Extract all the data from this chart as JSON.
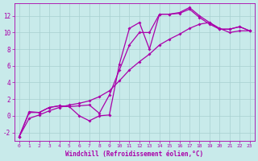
{
  "xlabel": "Windchill (Refroidissement éolien,°C)",
  "background_color": "#c8eaea",
  "grid_color": "#a8d0d0",
  "line_color": "#aa00aa",
  "xlim": [
    -0.5,
    23.5
  ],
  "ylim": [
    -3.0,
    13.5
  ],
  "yticks": [
    -2,
    0,
    2,
    4,
    6,
    8,
    10,
    12
  ],
  "xticks": [
    0,
    1,
    2,
    3,
    4,
    5,
    6,
    7,
    8,
    9,
    10,
    11,
    12,
    13,
    14,
    15,
    16,
    17,
    18,
    19,
    20,
    21,
    22,
    23
  ],
  "line1_x": [
    0,
    1,
    2,
    3,
    4,
    5,
    6,
    7,
    8,
    9,
    10,
    11,
    12,
    13,
    14,
    15,
    16,
    17,
    18,
    19,
    20,
    21,
    22,
    23
  ],
  "line1_y": [
    -2.5,
    0.5,
    0.4,
    1.0,
    1.2,
    1.1,
    0.0,
    -0.6,
    0.0,
    0.1,
    6.2,
    10.5,
    11.2,
    8.0,
    12.2,
    12.2,
    12.4,
    13.0,
    12.0,
    11.2,
    10.4,
    10.4,
    10.7,
    10.2
  ],
  "line2_x": [
    0,
    1,
    2,
    3,
    4,
    5,
    6,
    7,
    8,
    9,
    10,
    11,
    12,
    13,
    14,
    15,
    16,
    17,
    18,
    19,
    20,
    21,
    22,
    23
  ],
  "line2_y": [
    -2.5,
    0.4,
    0.4,
    1.0,
    1.2,
    1.1,
    1.2,
    1.3,
    0.3,
    2.5,
    5.5,
    8.5,
    10.0,
    10.0,
    12.2,
    12.2,
    12.3,
    12.8,
    11.8,
    11.0,
    10.4,
    10.4,
    10.7,
    10.2
  ],
  "line3_x": [
    0,
    1,
    2,
    3,
    4,
    5,
    6,
    7,
    8,
    9,
    10,
    11,
    12,
    13,
    14,
    15,
    16,
    17,
    18,
    19,
    20,
    21,
    22,
    23
  ],
  "line3_y": [
    -2.5,
    -0.3,
    0.1,
    0.6,
    1.0,
    1.3,
    1.5,
    1.8,
    2.3,
    3.0,
    4.2,
    5.5,
    6.5,
    7.4,
    8.5,
    9.2,
    9.8,
    10.5,
    11.0,
    11.2,
    10.5,
    10.0,
    10.2,
    10.2
  ],
  "font_family": "monospace",
  "marker": "D",
  "markersize": 2.0,
  "linewidth": 0.9
}
